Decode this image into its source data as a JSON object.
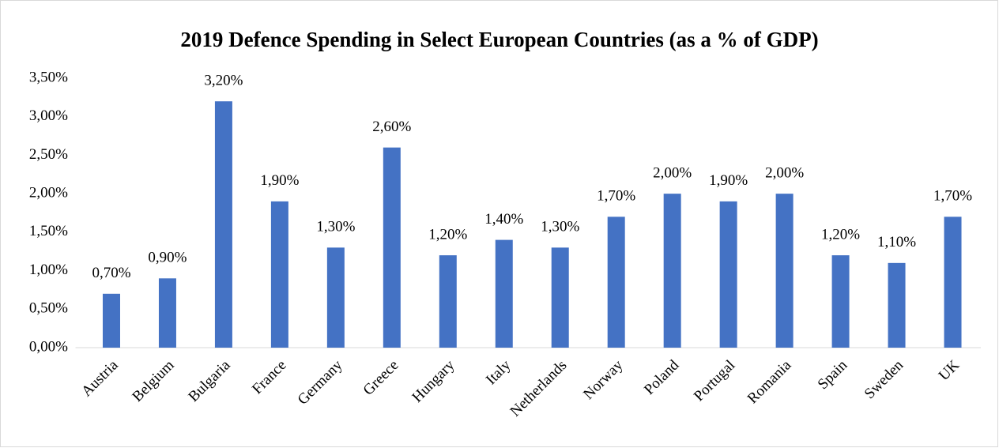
{
  "chart_data": {
    "type": "bar",
    "title": "2019 Defence Spending in Select European Countries (as a % of GDP)",
    "categories": [
      "Austria",
      "Belgium",
      "Bulgaria",
      "France",
      "Germany",
      "Greece",
      "Hungary",
      "Italy",
      "Netherlands",
      "Norway",
      "Poland",
      "Portugal",
      "Romania",
      "Spain",
      "Sweden",
      "UK"
    ],
    "values": [
      0.7,
      0.9,
      3.2,
      1.9,
      1.3,
      2.6,
      1.2,
      1.4,
      1.3,
      1.7,
      2.0,
      1.9,
      2.0,
      1.2,
      1.1,
      1.7
    ],
    "value_labels": [
      "0,70%",
      "0,90%",
      "3,20%",
      "1,90%",
      "1,30%",
      "2,60%",
      "1,20%",
      "1,40%",
      "1,30%",
      "1,70%",
      "2,00%",
      "1,90%",
      "2,00%",
      "1,20%",
      "1,10%",
      "1,70%"
    ],
    "color": "#4472c4",
    "ylim": [
      0,
      3.5
    ],
    "yticks": [
      {
        "value": 0,
        "label": "0,00%"
      },
      {
        "value": 0.5,
        "label": "0,50%"
      },
      {
        "value": 1.0,
        "label": "1,00%"
      },
      {
        "value": 1.5,
        "label": "1,50%"
      },
      {
        "value": 2.0,
        "label": "2,00%"
      },
      {
        "value": 2.5,
        "label": "2,50%"
      },
      {
        "value": 3.0,
        "label": "3,00%"
      },
      {
        "value": 3.5,
        "label": "3,50%"
      }
    ],
    "grid": false
  }
}
